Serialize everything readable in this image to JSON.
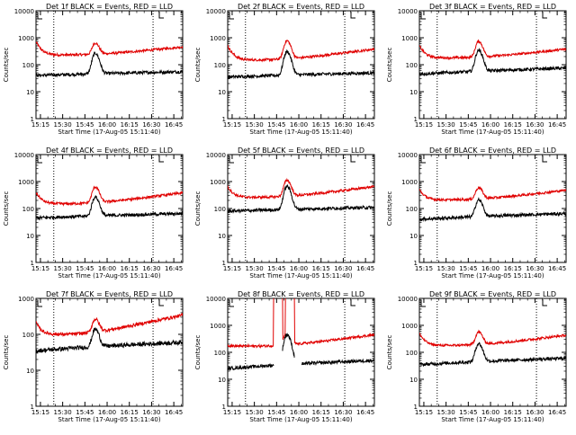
{
  "chart_data": [
    {
      "type": "line",
      "title": "Det 1f BLACK = Events, RED = LLD",
      "xlabel": "Start Time (17-Aug-05 15:11:40)",
      "ylabel": "Counts/sec",
      "x_ticks": [
        "15:15",
        "15:30",
        "15:45",
        "16:00",
        "16:15",
        "16:30",
        "16:45"
      ],
      "y_ticks": [
        "1",
        "10",
        "100",
        "1000",
        "10000"
      ],
      "ylim": [
        1,
        10000
      ],
      "yscale": "log",
      "series": [
        {
          "name": "RED",
          "color": "#e00000",
          "start": "15:12",
          "end": "16:51",
          "base_start": 700,
          "floor": 230,
          "end_level": 460,
          "peak_time": "15:52",
          "peak": 620,
          "spikes": []
        },
        {
          "name": "BLACK",
          "color": "#000000",
          "start": "15:12",
          "end": "16:51",
          "base_start": 40,
          "floor": 40,
          "end_level": 55,
          "peak_time": "15:52",
          "peak": 260,
          "spikes": [],
          "start_drop": 2,
          "end_drop": 25
        }
      ]
    },
    {
      "type": "line",
      "title": "Det 2f BLACK = Events, RED = LLD",
      "xlabel": "Start Time (17-Aug-05 15:11:40)",
      "ylabel": "Counts/sec",
      "x_ticks": [
        "15:15",
        "15:30",
        "15:45",
        "16:00",
        "16:15",
        "16:30",
        "16:45"
      ],
      "y_ticks": [
        "1",
        "10",
        "100",
        "1000",
        "10000"
      ],
      "ylim": [
        1,
        10000
      ],
      "yscale": "log",
      "series": [
        {
          "name": "RED",
          "color": "#e00000",
          "start": "15:12",
          "end": "16:51",
          "base_start": 500,
          "floor": 150,
          "end_level": 380,
          "peak_time": "15:52",
          "peak": 760,
          "spikes": []
        },
        {
          "name": "BLACK",
          "color": "#000000",
          "start": "15:12",
          "end": "16:51",
          "base_start": 35,
          "floor": 35,
          "end_level": 50,
          "peak_time": "15:52",
          "peak": 300,
          "spikes": [],
          "start_drop": 8,
          "end_drop": 22
        }
      ]
    },
    {
      "type": "line",
      "title": "Det 3f BLACK = Events, RED = LLD",
      "xlabel": "Start Time (17-Aug-05 15:11:40)",
      "ylabel": "Counts/sec",
      "x_ticks": [
        "15:15",
        "15:30",
        "15:45",
        "16:00",
        "16:15",
        "16:30",
        "16:45"
      ],
      "y_ticks": [
        "1",
        "10",
        "100",
        "1000",
        "10000"
      ],
      "ylim": [
        1,
        10000
      ],
      "yscale": "log",
      "series": [
        {
          "name": "RED",
          "color": "#e00000",
          "start": "15:12",
          "end": "16:51",
          "base_start": 500,
          "floor": 180,
          "end_level": 380,
          "peak_time": "15:52",
          "peak": 720,
          "spikes": []
        },
        {
          "name": "BLACK",
          "color": "#000000",
          "start": "15:12",
          "end": "16:51",
          "base_start": 45,
          "floor": 45,
          "end_level": 75,
          "peak_time": "15:52",
          "peak": 330,
          "spikes": [],
          "start_drop": 2,
          "end_drop": 20
        }
      ]
    },
    {
      "type": "line",
      "title": "Det 4f BLACK = Events, RED = LLD",
      "xlabel": "Start Time (17-Aug-05 15:11:40)",
      "ylabel": "Counts/sec",
      "x_ticks": [
        "15:15",
        "15:30",
        "15:45",
        "16:00",
        "16:15",
        "16:30",
        "16:45"
      ],
      "y_ticks": [
        "1",
        "10",
        "100",
        "1000",
        "10000"
      ],
      "ylim": [
        1,
        10000
      ],
      "yscale": "log",
      "series": [
        {
          "name": "RED",
          "color": "#e00000",
          "start": "15:12",
          "end": "16:51",
          "base_start": 400,
          "floor": 150,
          "end_level": 380,
          "peak_time": "15:52",
          "peak": 620,
          "spikes": []
        },
        {
          "name": "BLACK",
          "color": "#000000",
          "start": "15:12",
          "end": "16:51",
          "base_start": 50,
          "floor": 45,
          "end_level": 65,
          "peak_time": "15:52",
          "peak": 260,
          "spikes": [],
          "start_drop": 2,
          "end_drop": 20
        }
      ]
    },
    {
      "type": "line",
      "title": "Det 5f BLACK = Events, RED = LLD",
      "xlabel": "Start Time (17-Aug-05 15:11:40)",
      "ylabel": "Counts/sec",
      "x_ticks": [
        "15:15",
        "15:30",
        "15:45",
        "16:00",
        "16:15",
        "16:30",
        "16:45"
      ],
      "y_ticks": [
        "1",
        "10",
        "100",
        "1000",
        "10000"
      ],
      "ylim": [
        1,
        10000
      ],
      "yscale": "log",
      "series": [
        {
          "name": "RED",
          "color": "#e00000",
          "start": "15:12",
          "end": "16:51",
          "base_start": 650,
          "floor": 260,
          "end_level": 650,
          "peak_time": "15:52",
          "peak": 1100,
          "spikes": []
        },
        {
          "name": "BLACK",
          "color": "#000000",
          "start": "15:12",
          "end": "16:51",
          "base_start": 80,
          "floor": 80,
          "end_level": 110,
          "peak_time": "15:52",
          "peak": 650,
          "spikes": [],
          "start_drop": 2,
          "end_drop": 40
        }
      ]
    },
    {
      "type": "line",
      "title": "Det 6f BLACK = Events, RED = LLD",
      "xlabel": "Start Time (17-Aug-05 15:11:40)",
      "ylabel": "Counts/sec",
      "x_ticks": [
        "15:15",
        "15:30",
        "15:45",
        "16:00",
        "16:15",
        "16:30",
        "16:45"
      ],
      "y_ticks": [
        "1",
        "10",
        "100",
        "1000",
        "10000"
      ],
      "ylim": [
        1,
        10000
      ],
      "yscale": "log",
      "series": [
        {
          "name": "RED",
          "color": "#e00000",
          "start": "15:12",
          "end": "16:51",
          "base_start": 500,
          "floor": 210,
          "end_level": 480,
          "peak_time": "15:52",
          "peak": 580,
          "spikes": []
        },
        {
          "name": "BLACK",
          "color": "#000000",
          "start": "15:12",
          "end": "16:51",
          "base_start": 40,
          "floor": 40,
          "end_level": 65,
          "peak_time": "15:52",
          "peak": 200,
          "spikes": [],
          "start_drop": 2,
          "end_drop": 20
        }
      ]
    },
    {
      "type": "line",
      "title": "Det 7f BLACK = Events, RED = LLD",
      "xlabel": "Start Time (17-Aug-05 15:11:40)",
      "ylabel": "Counts/sec",
      "x_ticks": [
        "15:15",
        "15:30",
        "15:45",
        "16:00",
        "16:15",
        "16:30",
        "16:45"
      ],
      "y_ticks": [
        "1",
        "10",
        "100",
        "1000"
      ],
      "ylim": [
        1,
        1000
      ],
      "yscale": "log",
      "series": [
        {
          "name": "RED",
          "color": "#e00000",
          "start": "15:12",
          "end": "16:51",
          "base_start": 210,
          "floor": 100,
          "end_level": 340,
          "peak_time": "15:52",
          "peak": 250,
          "spikes": []
        },
        {
          "name": "BLACK",
          "color": "#000000",
          "start": "15:12",
          "end": "16:51",
          "base_start": 35,
          "floor": 35,
          "end_level": 60,
          "peak_time": "15:52",
          "peak": 130,
          "spikes": [],
          "start_drop": 2,
          "end_drop": 25
        }
      ]
    },
    {
      "type": "line",
      "title": "Det 8f BLACK = Events, RED = LLD",
      "xlabel": "Start Time (17-Aug-05 15:11:40)",
      "ylabel": "Counts/sec",
      "x_ticks": [
        "15:15",
        "15:30",
        "15:45",
        "16:00",
        "16:15",
        "16:30",
        "16:45"
      ],
      "y_ticks": [
        "1",
        "10",
        "100",
        "1000",
        "10000"
      ],
      "ylim": [
        1,
        10000
      ],
      "yscale": "log",
      "series": [
        {
          "name": "RED",
          "color": "#e00000",
          "start": "15:12",
          "end": "16:51",
          "base_start": 180,
          "floor": 170,
          "end_level": 450,
          "peak_time": "15:52",
          "peak": 550,
          "spikes": [
            [
              "15:43",
              "15:49"
            ],
            [
              "15:51",
              "15:57"
            ]
          ]
        },
        {
          "name": "BLACK",
          "color": "#000000",
          "start": "15:12",
          "end": "16:51",
          "base_start": 25,
          "floor": 25,
          "end_level": 50,
          "peak_time": "15:52",
          "peak": 450,
          "spikes": [],
          "gaps": [
            [
              "15:43",
              "15:49"
            ],
            [
              "15:57",
              "16:02"
            ]
          ],
          "start_drop": 3,
          "end_drop": 20
        }
      ]
    },
    {
      "type": "line",
      "title": "Det 9f BLACK = Events, RED = LLD",
      "xlabel": "Start Time (17-Aug-05 15:11:40)",
      "ylabel": "Counts/sec",
      "x_ticks": [
        "15:15",
        "15:30",
        "15:45",
        "16:00",
        "16:15",
        "16:30",
        "16:45"
      ],
      "y_ticks": [
        "1",
        "10",
        "100",
        "1000",
        "10000"
      ],
      "ylim": [
        1,
        10000
      ],
      "yscale": "log",
      "series": [
        {
          "name": "RED",
          "color": "#e00000",
          "start": "15:12",
          "end": "16:51",
          "base_start": 500,
          "floor": 180,
          "end_level": 430,
          "peak_time": "15:52",
          "peak": 550,
          "spikes": []
        },
        {
          "name": "BLACK",
          "color": "#000000",
          "start": "15:12",
          "end": "16:51",
          "base_start": 40,
          "floor": 35,
          "end_level": 60,
          "peak_time": "15:52",
          "peak": 200,
          "spikes": [],
          "start_drop": 2,
          "end_drop": 20
        }
      ]
    }
  ],
  "markers": {
    "vertical_dotted_times": [
      "15:24",
      "16:31"
    ],
    "marker_label": "L"
  }
}
